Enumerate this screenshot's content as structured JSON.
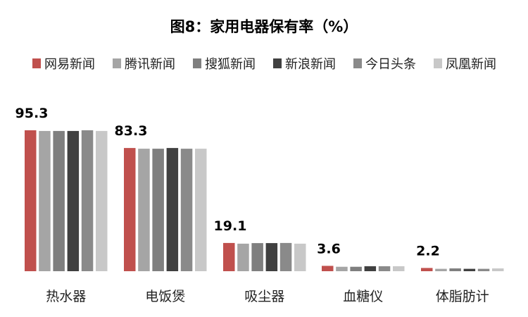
{
  "chart_data": {
    "type": "bar",
    "title": "图8：家用电器保有率（%）",
    "categories": [
      "热水器",
      "电饭煲",
      "吸尘器",
      "血糖仪",
      "体脂肪计"
    ],
    "series": [
      {
        "name": "网易新闻",
        "color": "#c0504d",
        "values": [
          95.3,
          83.3,
          19.1,
          3.6,
          2.2
        ]
      },
      {
        "name": "腾讯新闻",
        "color": "#a5a5a5",
        "values": [
          94.8,
          82.8,
          18.6,
          3.0,
          1.6
        ]
      },
      {
        "name": "搜狐新闻",
        "color": "#7f7f7f",
        "values": [
          94.8,
          82.8,
          19.0,
          3.0,
          1.9
        ]
      },
      {
        "name": "新浪新闻",
        "color": "#404040",
        "values": [
          94.8,
          83.3,
          19.0,
          3.4,
          1.6
        ]
      },
      {
        "name": "今日头条",
        "color": "#8a8a8a",
        "values": [
          95.3,
          82.8,
          19.1,
          3.4,
          1.6
        ]
      },
      {
        "name": "凤凰新闻",
        "color": "#c8c8c8",
        "values": [
          94.8,
          82.8,
          18.6,
          3.4,
          1.9
        ]
      }
    ],
    "data_labels": [
      "95.3",
      "83.3",
      "19.1",
      "3.6",
      "2.2"
    ],
    "ylim": [
      0,
      100
    ],
    "grid": false,
    "legend": "top"
  }
}
